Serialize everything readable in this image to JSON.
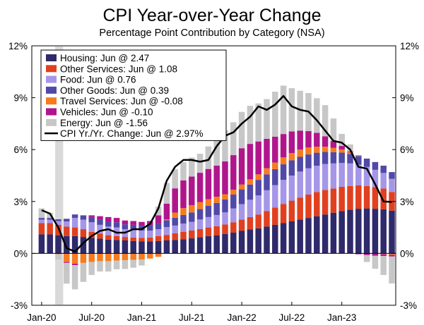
{
  "chart_data": {
    "type": "bar",
    "title": "CPI Year-over-Year Change",
    "subtitle": "Percentage Point Contribution by Category  (NSA)",
    "ylim": [
      -3,
      12
    ],
    "y_ticks": [
      "-3%",
      "0%",
      "3%",
      "6%",
      "9%",
      "12%"
    ],
    "y_tick_values": [
      -3,
      0,
      3,
      6,
      9,
      12
    ],
    "x_ticks": [
      {
        "label": "Jan-20",
        "index": 0
      },
      {
        "label": "Jul-20",
        "index": 6
      },
      {
        "label": "Jan-21",
        "index": 12
      },
      {
        "label": "Jul-21",
        "index": 18
      },
      {
        "label": "Jan-22",
        "index": 24
      },
      {
        "label": "Jul-22",
        "index": 30
      },
      {
        "label": "Jan-23",
        "index": 36
      }
    ],
    "recession_shading": {
      "start_index": 2,
      "end_index": 3,
      "color": "#d9d9d9"
    },
    "grid": false,
    "legend_position": "top-left",
    "series": [
      {
        "name": "Housing: Jun @ 2.47",
        "color": "#2f2a6b",
        "values": [
          1.1,
          1.1,
          1.05,
          1.0,
          1.0,
          0.95,
          0.9,
          0.85,
          0.8,
          0.78,
          0.75,
          0.72,
          0.7,
          0.7,
          0.72,
          0.75,
          0.78,
          0.82,
          0.87,
          0.93,
          1.0,
          1.05,
          1.12,
          1.2,
          1.3,
          1.38,
          1.45,
          1.55,
          1.65,
          1.75,
          1.85,
          1.95,
          2.05,
          2.15,
          2.25,
          2.35,
          2.45,
          2.52,
          2.58,
          2.6,
          2.58,
          2.55,
          2.47
        ]
      },
      {
        "name": "Other Services: Jun @ 1.08",
        "color": "#e0401f",
        "values": [
          0.65,
          0.65,
          0.6,
          0.55,
          0.5,
          0.45,
          0.35,
          0.3,
          0.25,
          0.22,
          0.2,
          0.2,
          0.2,
          0.22,
          0.28,
          0.32,
          0.38,
          0.42,
          0.45,
          0.48,
          0.5,
          0.52,
          0.55,
          0.6,
          0.65,
          0.72,
          0.8,
          0.9,
          1.0,
          1.1,
          1.2,
          1.28,
          1.35,
          1.4,
          1.42,
          1.4,
          1.4,
          1.38,
          1.35,
          1.3,
          1.25,
          1.2,
          1.08
        ]
      },
      {
        "name": "Food: Jun @ 0.76",
        "color": "#a696e8",
        "values": [
          0.2,
          0.2,
          0.22,
          0.3,
          0.55,
          0.55,
          0.55,
          0.5,
          0.5,
          0.5,
          0.45,
          0.45,
          0.42,
          0.4,
          0.4,
          0.45,
          0.45,
          0.48,
          0.5,
          0.55,
          0.6,
          0.65,
          0.7,
          0.8,
          0.9,
          1.0,
          1.1,
          1.2,
          1.3,
          1.4,
          1.45,
          1.5,
          1.52,
          1.52,
          1.5,
          1.45,
          1.38,
          1.3,
          1.2,
          1.1,
          1.0,
          0.9,
          0.76
        ]
      },
      {
        "name": "Other Goods: Jun @ 0.39",
        "color": "#5149a8",
        "values": [
          0.1,
          0.1,
          0.1,
          0.15,
          0.2,
          0.25,
          0.3,
          0.3,
          0.3,
          0.3,
          0.28,
          0.28,
          0.28,
          0.3,
          0.35,
          0.4,
          0.45,
          0.5,
          0.55,
          0.6,
          0.65,
          0.7,
          0.75,
          0.8,
          0.85,
          0.88,
          0.9,
          0.92,
          0.92,
          0.9,
          0.88,
          0.85,
          0.8,
          0.75,
          0.7,
          0.65,
          0.6,
          0.55,
          0.5,
          0.48,
          0.45,
          0.42,
          0.39
        ]
      },
      {
        "name": "Travel Services: Jun @ -0.08",
        "color": "#f57c1f",
        "values": [
          0.0,
          0.0,
          -0.05,
          -0.5,
          -0.6,
          -0.55,
          -0.5,
          -0.45,
          -0.45,
          -0.42,
          -0.4,
          -0.38,
          -0.35,
          -0.3,
          -0.2,
          0.05,
          0.3,
          0.4,
          0.42,
          0.4,
          0.38,
          0.35,
          0.3,
          0.28,
          0.28,
          0.3,
          0.32,
          0.35,
          0.38,
          0.4,
          0.42,
          0.42,
          0.4,
          0.35,
          0.3,
          0.25,
          0.18,
          0.1,
          0.05,
          0.0,
          -0.02,
          -0.05,
          -0.08
        ]
      },
      {
        "name": "Vehicles: Jun @ -0.10",
        "color": "#b0168c",
        "values": [
          0.0,
          0.0,
          0.0,
          -0.05,
          -0.08,
          0.0,
          0.1,
          0.2,
          0.25,
          0.25,
          0.22,
          0.22,
          0.22,
          0.25,
          0.45,
          0.9,
          1.4,
          1.6,
          1.65,
          1.7,
          1.75,
          1.8,
          1.9,
          2.0,
          2.1,
          2.05,
          1.9,
          1.7,
          1.5,
          1.35,
          1.25,
          1.1,
          0.95,
          0.8,
          0.6,
          0.4,
          0.2,
          0.05,
          -0.05,
          -0.1,
          -0.12,
          -0.1,
          -0.1
        ]
      },
      {
        "name": "Energy: Jun @ -1.56",
        "color": "#c7c7c7",
        "values": [
          0.55,
          0.3,
          -0.3,
          -1.2,
          -1.4,
          -1.1,
          -0.75,
          -0.6,
          -0.6,
          -0.5,
          -0.5,
          -0.45,
          -0.35,
          0.0,
          0.5,
          1.2,
          1.1,
          1.05,
          1.1,
          1.1,
          1.3,
          1.6,
          1.8,
          1.9,
          2.1,
          2.2,
          2.2,
          2.3,
          2.6,
          2.8,
          2.5,
          2.3,
          2.2,
          2.0,
          1.8,
          1.3,
          0.7,
          0.4,
          0.0,
          -0.4,
          -0.75,
          -1.1,
          -1.56
        ]
      }
    ],
    "line": {
      "name": "CPI Yr./Yr. Change: Jun @ 2.97%",
      "color": "#000000",
      "values": [
        2.5,
        2.3,
        1.5,
        0.3,
        0.1,
        0.6,
        1.0,
        1.3,
        1.4,
        1.2,
        1.2,
        1.4,
        1.4,
        1.7,
        2.6,
        4.2,
        5.0,
        5.4,
        5.4,
        5.3,
        5.4,
        6.2,
        6.8,
        7.0,
        7.5,
        7.9,
        8.5,
        8.3,
        8.6,
        9.1,
        8.5,
        8.3,
        8.2,
        7.7,
        7.1,
        6.5,
        6.4,
        6.0,
        5.0,
        4.9,
        4.0,
        3.0,
        2.97
      ]
    }
  }
}
